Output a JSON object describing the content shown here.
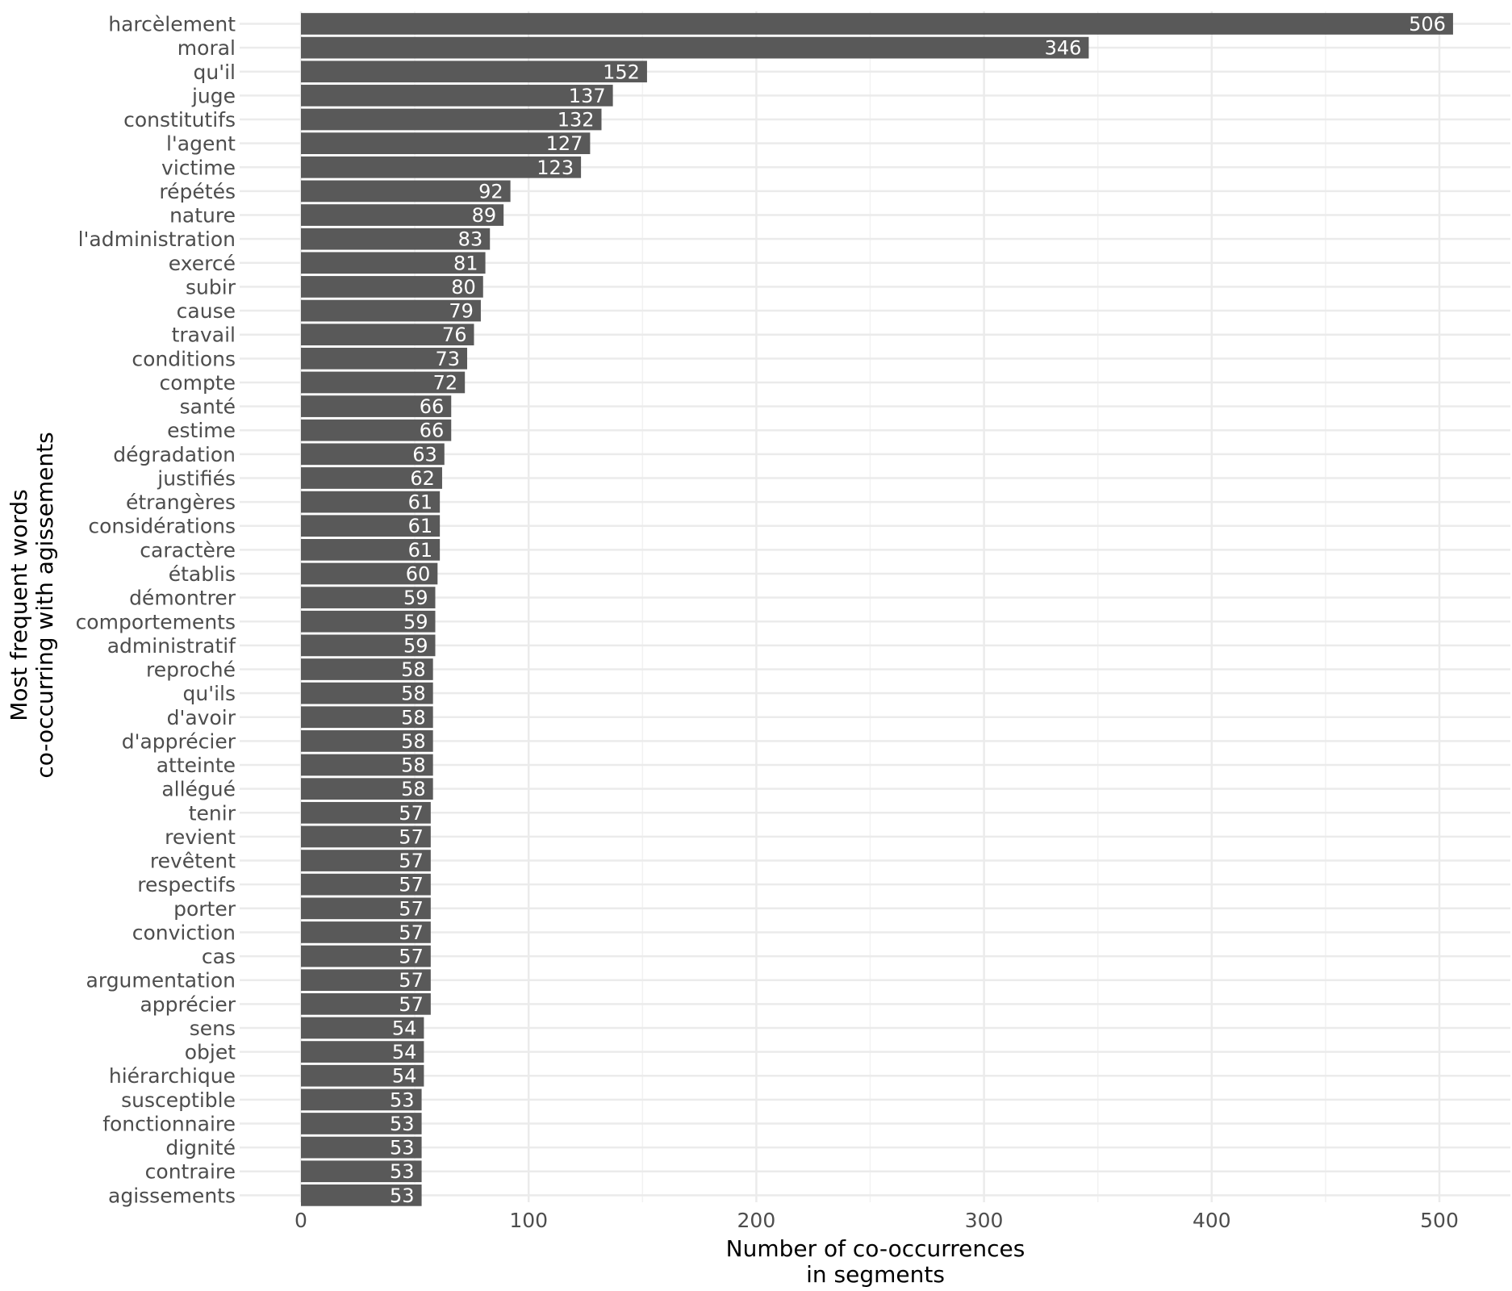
{
  "chart_data": {
    "type": "bar",
    "orientation": "horizontal",
    "title": "",
    "xlabel": [
      "Number of co-occurrences",
      "in segments"
    ],
    "ylabel": [
      "Most frequent words",
      "co-occurring with agissements"
    ],
    "xlim": [
      0,
      520
    ],
    "x_ticks": [
      0,
      100,
      200,
      300,
      400,
      500
    ],
    "grid": true,
    "colors": {
      "bar": "#595959",
      "grid_major": "#ebebeb",
      "grid_minor": "#f2f2f2",
      "bar_label": "#ffffff",
      "tick_text": "#4d4d4d"
    },
    "categories": [
      "harcèlement",
      "moral",
      "qu'il",
      "juge",
      "constitutifs",
      "l'agent",
      "victime",
      "répétés",
      "nature",
      "l'administration",
      "exercé",
      "subir",
      "cause",
      "travail",
      "conditions",
      "compte",
      "santé",
      "estime",
      "dégradation",
      "justifiés",
      "étrangères",
      "considérations",
      "caractère",
      "établis",
      "démontrer",
      "comportements",
      "administratif",
      "reproché",
      "qu'ils",
      "d'avoir",
      "d'apprécier",
      "atteinte",
      "allégué",
      "tenir",
      "revient",
      "revêtent",
      "respectifs",
      "porter",
      "conviction",
      "cas",
      "argumentation",
      "apprécier",
      "sens",
      "objet",
      "hiérarchique",
      "susceptible",
      "fonctionnaire",
      "dignité",
      "contraire",
      "agissements"
    ],
    "values": [
      506,
      346,
      152,
      137,
      132,
      127,
      123,
      92,
      89,
      83,
      81,
      80,
      79,
      76,
      73,
      72,
      66,
      66,
      63,
      62,
      61,
      61,
      61,
      60,
      59,
      59,
      59,
      58,
      58,
      58,
      58,
      58,
      58,
      57,
      57,
      57,
      57,
      57,
      57,
      57,
      57,
      57,
      54,
      54,
      54,
      53,
      53,
      53,
      53,
      53
    ]
  }
}
